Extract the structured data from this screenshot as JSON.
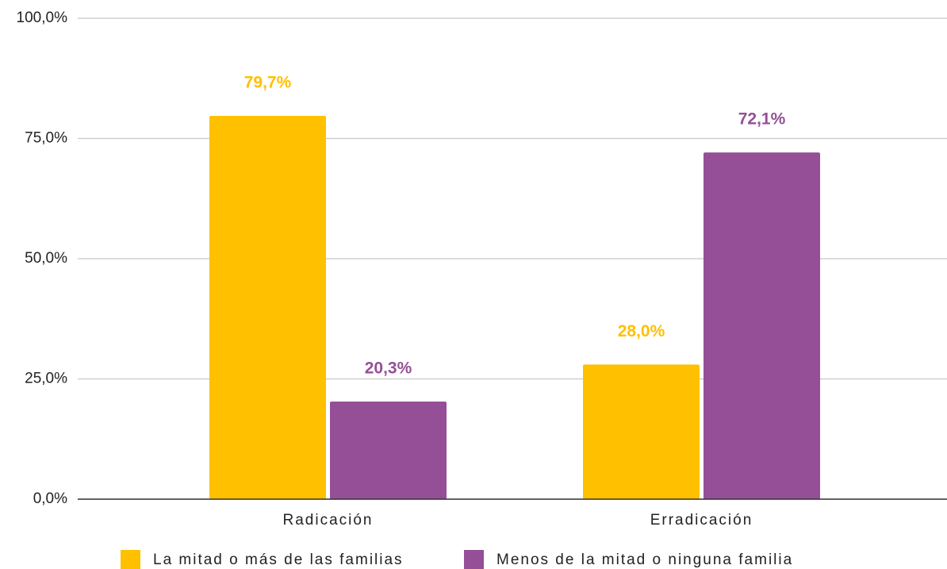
{
  "chart_data": {
    "type": "bar",
    "categories": [
      "Radicación",
      "Erradicación"
    ],
    "series": [
      {
        "name": "La mitad o más de las familias",
        "color": "#ffc000",
        "values": [
          79.7,
          28.0
        ],
        "value_labels": [
          "79,7%",
          "28,0%"
        ]
      },
      {
        "name": "Menos de la mitad o ninguna familia",
        "color": "#954f96",
        "values": [
          20.3,
          72.1
        ],
        "value_labels": [
          "20,3%",
          "72,1%"
        ]
      }
    ],
    "ylim": [
      0,
      100
    ],
    "yticks": [
      {
        "value": 0,
        "label": "0,0%"
      },
      {
        "value": 25,
        "label": "25,0%"
      },
      {
        "value": 50,
        "label": "50,0%"
      },
      {
        "value": 75,
        "label": "75,0%"
      },
      {
        "value": 100,
        "label": "100,0%"
      }
    ],
    "grid": true,
    "legend": "bottom"
  }
}
